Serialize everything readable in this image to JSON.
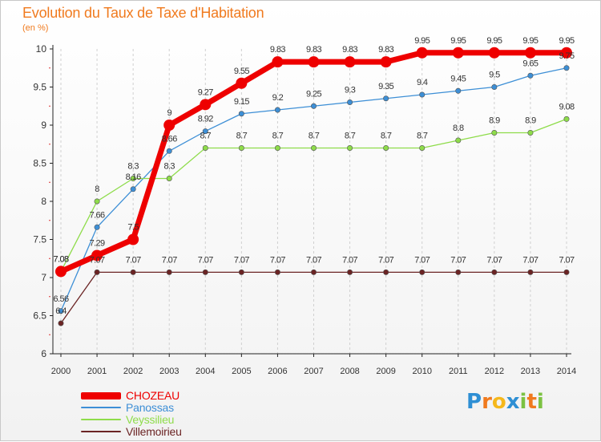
{
  "header": {
    "title": "Evolution du Taux de Taxe d'Habitation",
    "unit": "(en %)"
  },
  "logo": {
    "letters": [
      "P",
      "r",
      "o",
      "x",
      "i",
      "t",
      "i"
    ],
    "colors": [
      "#2e8fd4",
      "#f07a1e",
      "#f5b81c",
      "#2e8fd4",
      "#7cc242",
      "#f07a1e",
      "#7cc242"
    ]
  },
  "chart_data": {
    "type": "line",
    "x": [
      2000,
      2001,
      2002,
      2003,
      2004,
      2005,
      2006,
      2007,
      2008,
      2009,
      2010,
      2011,
      2012,
      2013,
      2014
    ],
    "xlabel": "",
    "ylabel": "",
    "ylim": [
      6,
      10
    ],
    "yticks": [
      "6",
      "6.5",
      "7",
      "7.5",
      "8",
      "8.5",
      "9",
      "9.5",
      "10"
    ],
    "grid": "vertical dashed",
    "legend_position": "bottom-left",
    "series": [
      {
        "name": "CHOZEAU",
        "color": "#ee0000",
        "values": [
          7.08,
          7.29,
          7.5,
          9,
          9.27,
          9.55,
          9.83,
          9.83,
          9.83,
          9.83,
          9.95,
          9.95,
          9.95,
          9.95,
          9.95
        ],
        "labels": [
          "7.08",
          "7.29",
          "7.5",
          "9",
          "9.27",
          "9.55",
          "9.83",
          "9.83",
          "9.83",
          "9.83",
          "9.95",
          "9.95",
          "9.95",
          "9.95",
          "9.95"
        ]
      },
      {
        "name": "Panossas",
        "color": "#3d8fd6",
        "values": [
          6.56,
          7.66,
          8.16,
          8.66,
          8.92,
          9.15,
          9.2,
          9.25,
          9.3,
          9.35,
          9.4,
          9.45,
          9.5,
          9.65,
          9.75
        ],
        "labels": [
          "6.56",
          "7.66",
          "8.16",
          "8.66",
          "8.92",
          "9.15",
          "9.2",
          "9.25",
          "9.3",
          "9.35",
          "9.4",
          "9.45",
          "9.5",
          "9.65",
          "9.75"
        ]
      },
      {
        "name": "Veyssilieu",
        "color": "#8edc4a",
        "values": [
          7.08,
          8,
          8.3,
          8.3,
          8.7,
          8.7,
          8.7,
          8.7,
          8.7,
          8.7,
          8.7,
          8.8,
          8.9,
          8.9,
          9.08
        ],
        "labels": [
          "7.08",
          "8",
          "8.3",
          "8.3",
          "8.7",
          "8.7",
          "8.7",
          "8.7",
          "8.7",
          "8.7",
          "8.7",
          "8.8",
          "8.9",
          "8.9",
          "9.08"
        ]
      },
      {
        "name": "Villemoirieu",
        "color": "#6b2424",
        "values": [
          6.4,
          7.07,
          7.07,
          7.07,
          7.07,
          7.07,
          7.07,
          7.07,
          7.07,
          7.07,
          7.07,
          7.07,
          7.07,
          7.07,
          7.07
        ],
        "labels": [
          "6.4",
          "7.07",
          "7.07",
          "7.07",
          "7.07",
          "7.07",
          "7.07",
          "7.07",
          "7.07",
          "7.07",
          "7.07",
          "7.07",
          "7.07",
          "7.07",
          "7.07"
        ]
      }
    ]
  }
}
